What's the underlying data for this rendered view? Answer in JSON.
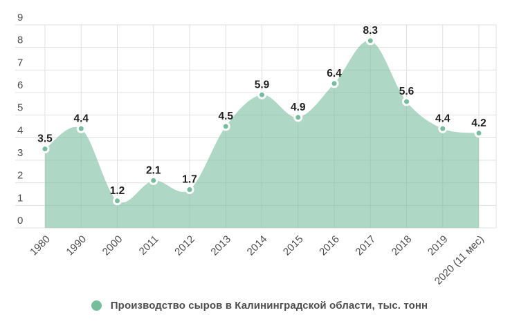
{
  "chart_data": {
    "type": "area",
    "title": "",
    "categories": [
      "1980",
      "1990",
      "2000",
      "2011",
      "2012",
      "2013",
      "2014",
      "2015",
      "2016",
      "2017",
      "2018",
      "2019",
      "2020 (11 мес)"
    ],
    "series": [
      {
        "name": "Производство сыров в Калининградской области, тыс. тонн",
        "values": [
          3.5,
          4.4,
          1.2,
          2.1,
          1.7,
          4.5,
          5.9,
          4.9,
          6.4,
          8.3,
          5.6,
          4.4,
          4.2
        ]
      }
    ],
    "value_labels": [
      "3.5",
      "4.4",
      "1.2",
      "2.1",
      "1.7",
      "4.5",
      "5.9",
      "4.9",
      "6.4",
      "8.3",
      "5.6",
      "4.4",
      "4.2"
    ],
    "yticks": [
      "0",
      "1",
      "2",
      "3",
      "4",
      "5",
      "6",
      "7",
      "8",
      "9"
    ],
    "ylim": [
      0,
      9
    ],
    "grid": true,
    "legend_position": "bottom",
    "xlabel": "",
    "ylabel": ""
  },
  "legend": {
    "label": "Производство сыров в Калининградской области, тыс. тонн"
  },
  "colors": {
    "background": "#FFFFFF",
    "area_fill": "#7CC0A2",
    "area_fill_opacity": "0.62",
    "marker": "#76BD9E",
    "marker_ring": "#FFFFFF",
    "grid": "#E0E0E0",
    "value_label": "#1F1F1F",
    "axis_label": "#4D4D4D",
    "legend_text": "#4D4D4D"
  }
}
